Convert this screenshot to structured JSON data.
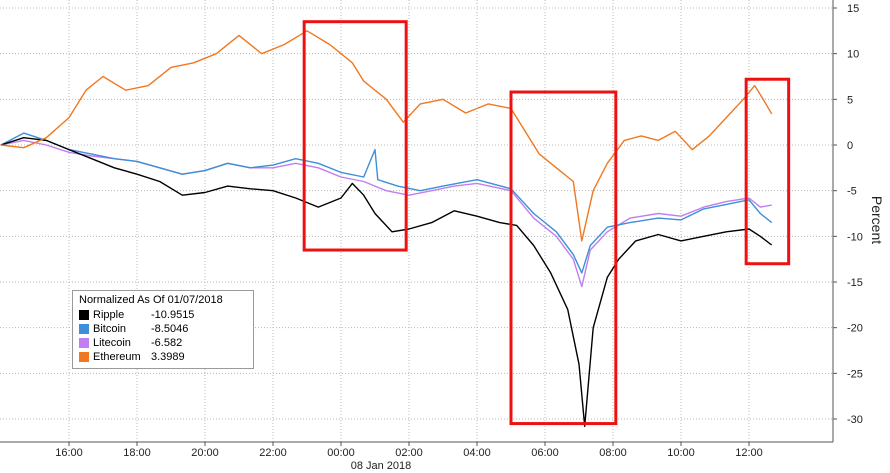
{
  "chart_data": {
    "type": "line",
    "title": "",
    "ylabel": "Percent",
    "ylim": [
      -31,
      15
    ],
    "y_ticks": [
      15,
      10,
      5,
      0,
      -5,
      -10,
      -15,
      -20,
      -25,
      -30
    ],
    "x_range": [
      "2018-01-07T14:00",
      "2018-01-08T13:30"
    ],
    "x_ticks": [
      {
        "t": "2018-01-07T16:00",
        "label": "16:00"
      },
      {
        "t": "2018-01-07T18:00",
        "label": "18:00"
      },
      {
        "t": "2018-01-07T20:00",
        "label": "20:00"
      },
      {
        "t": "2018-01-07T22:00",
        "label": "22:00"
      },
      {
        "t": "2018-01-08T00:00",
        "label": "00:00"
      },
      {
        "t": "2018-01-08T02:00",
        "label": "02:00"
      },
      {
        "t": "2018-01-08T04:00",
        "label": "04:00"
      },
      {
        "t": "2018-01-08T06:00",
        "label": "06:00"
      },
      {
        "t": "2018-01-08T08:00",
        "label": "08:00"
      },
      {
        "t": "2018-01-08T10:00",
        "label": "10:00"
      },
      {
        "t": "2018-01-08T12:00",
        "label": "12:00"
      }
    ],
    "date_label": "08 Jan 2018",
    "grid": true,
    "legend_position": "bottom-left",
    "legend_title": "Normalized As Of 01/07/2018",
    "series": [
      {
        "name": "Ripple",
        "last_value": "-10.9515",
        "color": "#000000",
        "points": [
          [
            "2018-01-07T14:00",
            0
          ],
          [
            "2018-01-07T14:40",
            0.8
          ],
          [
            "2018-01-07T15:20",
            0.5
          ],
          [
            "2018-01-07T16:00",
            -0.5
          ],
          [
            "2018-01-07T16:40",
            -1.5
          ],
          [
            "2018-01-07T17:20",
            -2.5
          ],
          [
            "2018-01-07T18:00",
            -3.2
          ],
          [
            "2018-01-07T18:40",
            -4.0
          ],
          [
            "2018-01-07T19:20",
            -5.5
          ],
          [
            "2018-01-07T20:00",
            -5.2
          ],
          [
            "2018-01-07T20:40",
            -4.5
          ],
          [
            "2018-01-07T21:20",
            -4.8
          ],
          [
            "2018-01-07T22:00",
            -5.0
          ],
          [
            "2018-01-07T22:40",
            -5.8
          ],
          [
            "2018-01-07T23:20",
            -6.8
          ],
          [
            "2018-01-08T00:00",
            -5.8
          ],
          [
            "2018-01-08T00:20",
            -4.2
          ],
          [
            "2018-01-08T00:40",
            -5.5
          ],
          [
            "2018-01-08T01:00",
            -7.5
          ],
          [
            "2018-01-08T01:30",
            -9.5
          ],
          [
            "2018-01-08T02:00",
            -9.2
          ],
          [
            "2018-01-08T02:40",
            -8.5
          ],
          [
            "2018-01-08T03:20",
            -7.2
          ],
          [
            "2018-01-08T04:00",
            -7.8
          ],
          [
            "2018-01-08T04:40",
            -8.5
          ],
          [
            "2018-01-08T05:10",
            -8.8
          ],
          [
            "2018-01-08T05:40",
            -11.0
          ],
          [
            "2018-01-08T06:10",
            -14.0
          ],
          [
            "2018-01-08T06:40",
            -18.0
          ],
          [
            "2018-01-08T07:00",
            -24.0
          ],
          [
            "2018-01-08T07:10",
            -30.8
          ],
          [
            "2018-01-08T07:25",
            -20.0
          ],
          [
            "2018-01-08T07:50",
            -14.5
          ],
          [
            "2018-01-08T08:10",
            -12.5
          ],
          [
            "2018-01-08T08:40",
            -10.5
          ],
          [
            "2018-01-08T09:20",
            -9.8
          ],
          [
            "2018-01-08T10:00",
            -10.5
          ],
          [
            "2018-01-08T10:40",
            -10.0
          ],
          [
            "2018-01-08T11:20",
            -9.5
          ],
          [
            "2018-01-08T12:00",
            -9.2
          ],
          [
            "2018-01-08T12:20",
            -10.0
          ],
          [
            "2018-01-08T12:40",
            -10.95
          ]
        ]
      },
      {
        "name": "Bitcoin",
        "last_value": "-8.5046",
        "color": "#3d8fd8",
        "points": [
          [
            "2018-01-07T14:00",
            0
          ],
          [
            "2018-01-07T14:40",
            1.3
          ],
          [
            "2018-01-07T15:20",
            0.5
          ],
          [
            "2018-01-07T16:00",
            -0.5
          ],
          [
            "2018-01-07T16:40",
            -1.0
          ],
          [
            "2018-01-07T17:20",
            -1.5
          ],
          [
            "2018-01-07T18:00",
            -1.8
          ],
          [
            "2018-01-07T18:40",
            -2.5
          ],
          [
            "2018-01-07T19:20",
            -3.2
          ],
          [
            "2018-01-07T20:00",
            -2.8
          ],
          [
            "2018-01-07T20:40",
            -2.0
          ],
          [
            "2018-01-07T21:20",
            -2.5
          ],
          [
            "2018-01-07T22:00",
            -2.2
          ],
          [
            "2018-01-07T22:40",
            -1.5
          ],
          [
            "2018-01-07T23:20",
            -2.0
          ],
          [
            "2018-01-08T00:00",
            -3.0
          ],
          [
            "2018-01-08T00:40",
            -3.5
          ],
          [
            "2018-01-08T01:00",
            -0.5
          ],
          [
            "2018-01-08T01:05",
            -3.8
          ],
          [
            "2018-01-08T01:40",
            -4.5
          ],
          [
            "2018-01-08T02:20",
            -5.0
          ],
          [
            "2018-01-08T03:00",
            -4.5
          ],
          [
            "2018-01-08T04:00",
            -3.8
          ],
          [
            "2018-01-08T05:00",
            -4.8
          ],
          [
            "2018-01-08T05:40",
            -7.5
          ],
          [
            "2018-01-08T06:20",
            -9.5
          ],
          [
            "2018-01-08T06:50",
            -12.0
          ],
          [
            "2018-01-08T07:05",
            -14.0
          ],
          [
            "2018-01-08T07:20",
            -11.0
          ],
          [
            "2018-01-08T07:50",
            -9.0
          ],
          [
            "2018-01-08T08:30",
            -8.5
          ],
          [
            "2018-01-08T09:20",
            -8.0
          ],
          [
            "2018-01-08T10:00",
            -8.2
          ],
          [
            "2018-01-08T10:40",
            -7.0
          ],
          [
            "2018-01-08T11:20",
            -6.5
          ],
          [
            "2018-01-08T12:00",
            -6.0
          ],
          [
            "2018-01-08T12:20",
            -7.5
          ],
          [
            "2018-01-08T12:40",
            -8.5
          ]
        ]
      },
      {
        "name": "Litecoin",
        "last_value": "-6.582",
        "color": "#c07ef0",
        "points": [
          [
            "2018-01-07T14:00",
            0
          ],
          [
            "2018-01-07T14:40",
            0.5
          ],
          [
            "2018-01-07T15:20",
            0
          ],
          [
            "2018-01-07T16:00",
            -0.8
          ],
          [
            "2018-01-07T16:40",
            -1.2
          ],
          [
            "2018-01-07T17:20",
            -1.5
          ],
          [
            "2018-01-07T18:00",
            -1.8
          ],
          [
            "2018-01-07T18:40",
            -2.5
          ],
          [
            "2018-01-07T19:20",
            -3.2
          ],
          [
            "2018-01-07T20:00",
            -2.8
          ],
          [
            "2018-01-07T20:40",
            -2.0
          ],
          [
            "2018-01-07T21:20",
            -2.5
          ],
          [
            "2018-01-07T22:00",
            -2.5
          ],
          [
            "2018-01-07T22:40",
            -2.0
          ],
          [
            "2018-01-07T23:20",
            -2.5
          ],
          [
            "2018-01-08T00:00",
            -3.5
          ],
          [
            "2018-01-08T00:40",
            -4.0
          ],
          [
            "2018-01-08T01:20",
            -5.0
          ],
          [
            "2018-01-08T02:00",
            -5.5
          ],
          [
            "2018-01-08T02:40",
            -5.0
          ],
          [
            "2018-01-08T03:20",
            -4.5
          ],
          [
            "2018-01-08T04:00",
            -4.2
          ],
          [
            "2018-01-08T05:00",
            -5.0
          ],
          [
            "2018-01-08T05:40",
            -8.0
          ],
          [
            "2018-01-08T06:20",
            -10.0
          ],
          [
            "2018-01-08T06:50",
            -12.5
          ],
          [
            "2018-01-08T07:05",
            -15.5
          ],
          [
            "2018-01-08T07:20",
            -11.5
          ],
          [
            "2018-01-08T07:50",
            -9.5
          ],
          [
            "2018-01-08T08:30",
            -8.0
          ],
          [
            "2018-01-08T09:20",
            -7.5
          ],
          [
            "2018-01-08T10:00",
            -7.8
          ],
          [
            "2018-01-08T10:40",
            -6.8
          ],
          [
            "2018-01-08T11:20",
            -6.2
          ],
          [
            "2018-01-08T12:00",
            -5.8
          ],
          [
            "2018-01-08T12:20",
            -6.8
          ],
          [
            "2018-01-08T12:40",
            -6.58
          ]
        ]
      },
      {
        "name": "Ethereum",
        "last_value": "3.3989",
        "color": "#f07820",
        "points": [
          [
            "2018-01-07T14:00",
            0
          ],
          [
            "2018-01-07T14:40",
            -0.3
          ],
          [
            "2018-01-07T15:20",
            0.8
          ],
          [
            "2018-01-07T16:00",
            3.0
          ],
          [
            "2018-01-07T16:30",
            6.0
          ],
          [
            "2018-01-07T17:00",
            7.5
          ],
          [
            "2018-01-07T17:40",
            6.0
          ],
          [
            "2018-01-07T18:20",
            6.5
          ],
          [
            "2018-01-07T19:00",
            8.5
          ],
          [
            "2018-01-07T19:40",
            9.0
          ],
          [
            "2018-01-07T20:20",
            10.0
          ],
          [
            "2018-01-07T21:00",
            12.0
          ],
          [
            "2018-01-07T21:40",
            10.0
          ],
          [
            "2018-01-07T22:20",
            11.0
          ],
          [
            "2018-01-07T23:00",
            12.5
          ],
          [
            "2018-01-07T23:40",
            11.0
          ],
          [
            "2018-01-08T00:20",
            9.0
          ],
          [
            "2018-01-08T00:40",
            7.0
          ],
          [
            "2018-01-08T01:20",
            5.0
          ],
          [
            "2018-01-08T01:50",
            2.5
          ],
          [
            "2018-01-08T02:20",
            4.5
          ],
          [
            "2018-01-08T03:00",
            5.0
          ],
          [
            "2018-01-08T03:40",
            3.5
          ],
          [
            "2018-01-08T04:20",
            4.5
          ],
          [
            "2018-01-08T05:00",
            4.0
          ],
          [
            "2018-01-08T05:20",
            2.0
          ],
          [
            "2018-01-08T05:50",
            -1.0
          ],
          [
            "2018-01-08T06:20",
            -2.5
          ],
          [
            "2018-01-08T06:50",
            -4.0
          ],
          [
            "2018-01-08T07:05",
            -10.5
          ],
          [
            "2018-01-08T07:25",
            -5.0
          ],
          [
            "2018-01-08T07:50",
            -2.0
          ],
          [
            "2018-01-08T08:20",
            0.5
          ],
          [
            "2018-01-08T08:50",
            1.0
          ],
          [
            "2018-01-08T09:20",
            0.5
          ],
          [
            "2018-01-08T09:50",
            1.5
          ],
          [
            "2018-01-08T10:20",
            -0.5
          ],
          [
            "2018-01-08T10:50",
            1.0
          ],
          [
            "2018-01-08T11:20",
            3.0
          ],
          [
            "2018-01-08T11:50",
            5.0
          ],
          [
            "2018-01-08T12:10",
            6.5
          ],
          [
            "2018-01-08T12:25",
            5.0
          ],
          [
            "2018-01-08T12:40",
            3.4
          ]
        ]
      }
    ]
  }
}
